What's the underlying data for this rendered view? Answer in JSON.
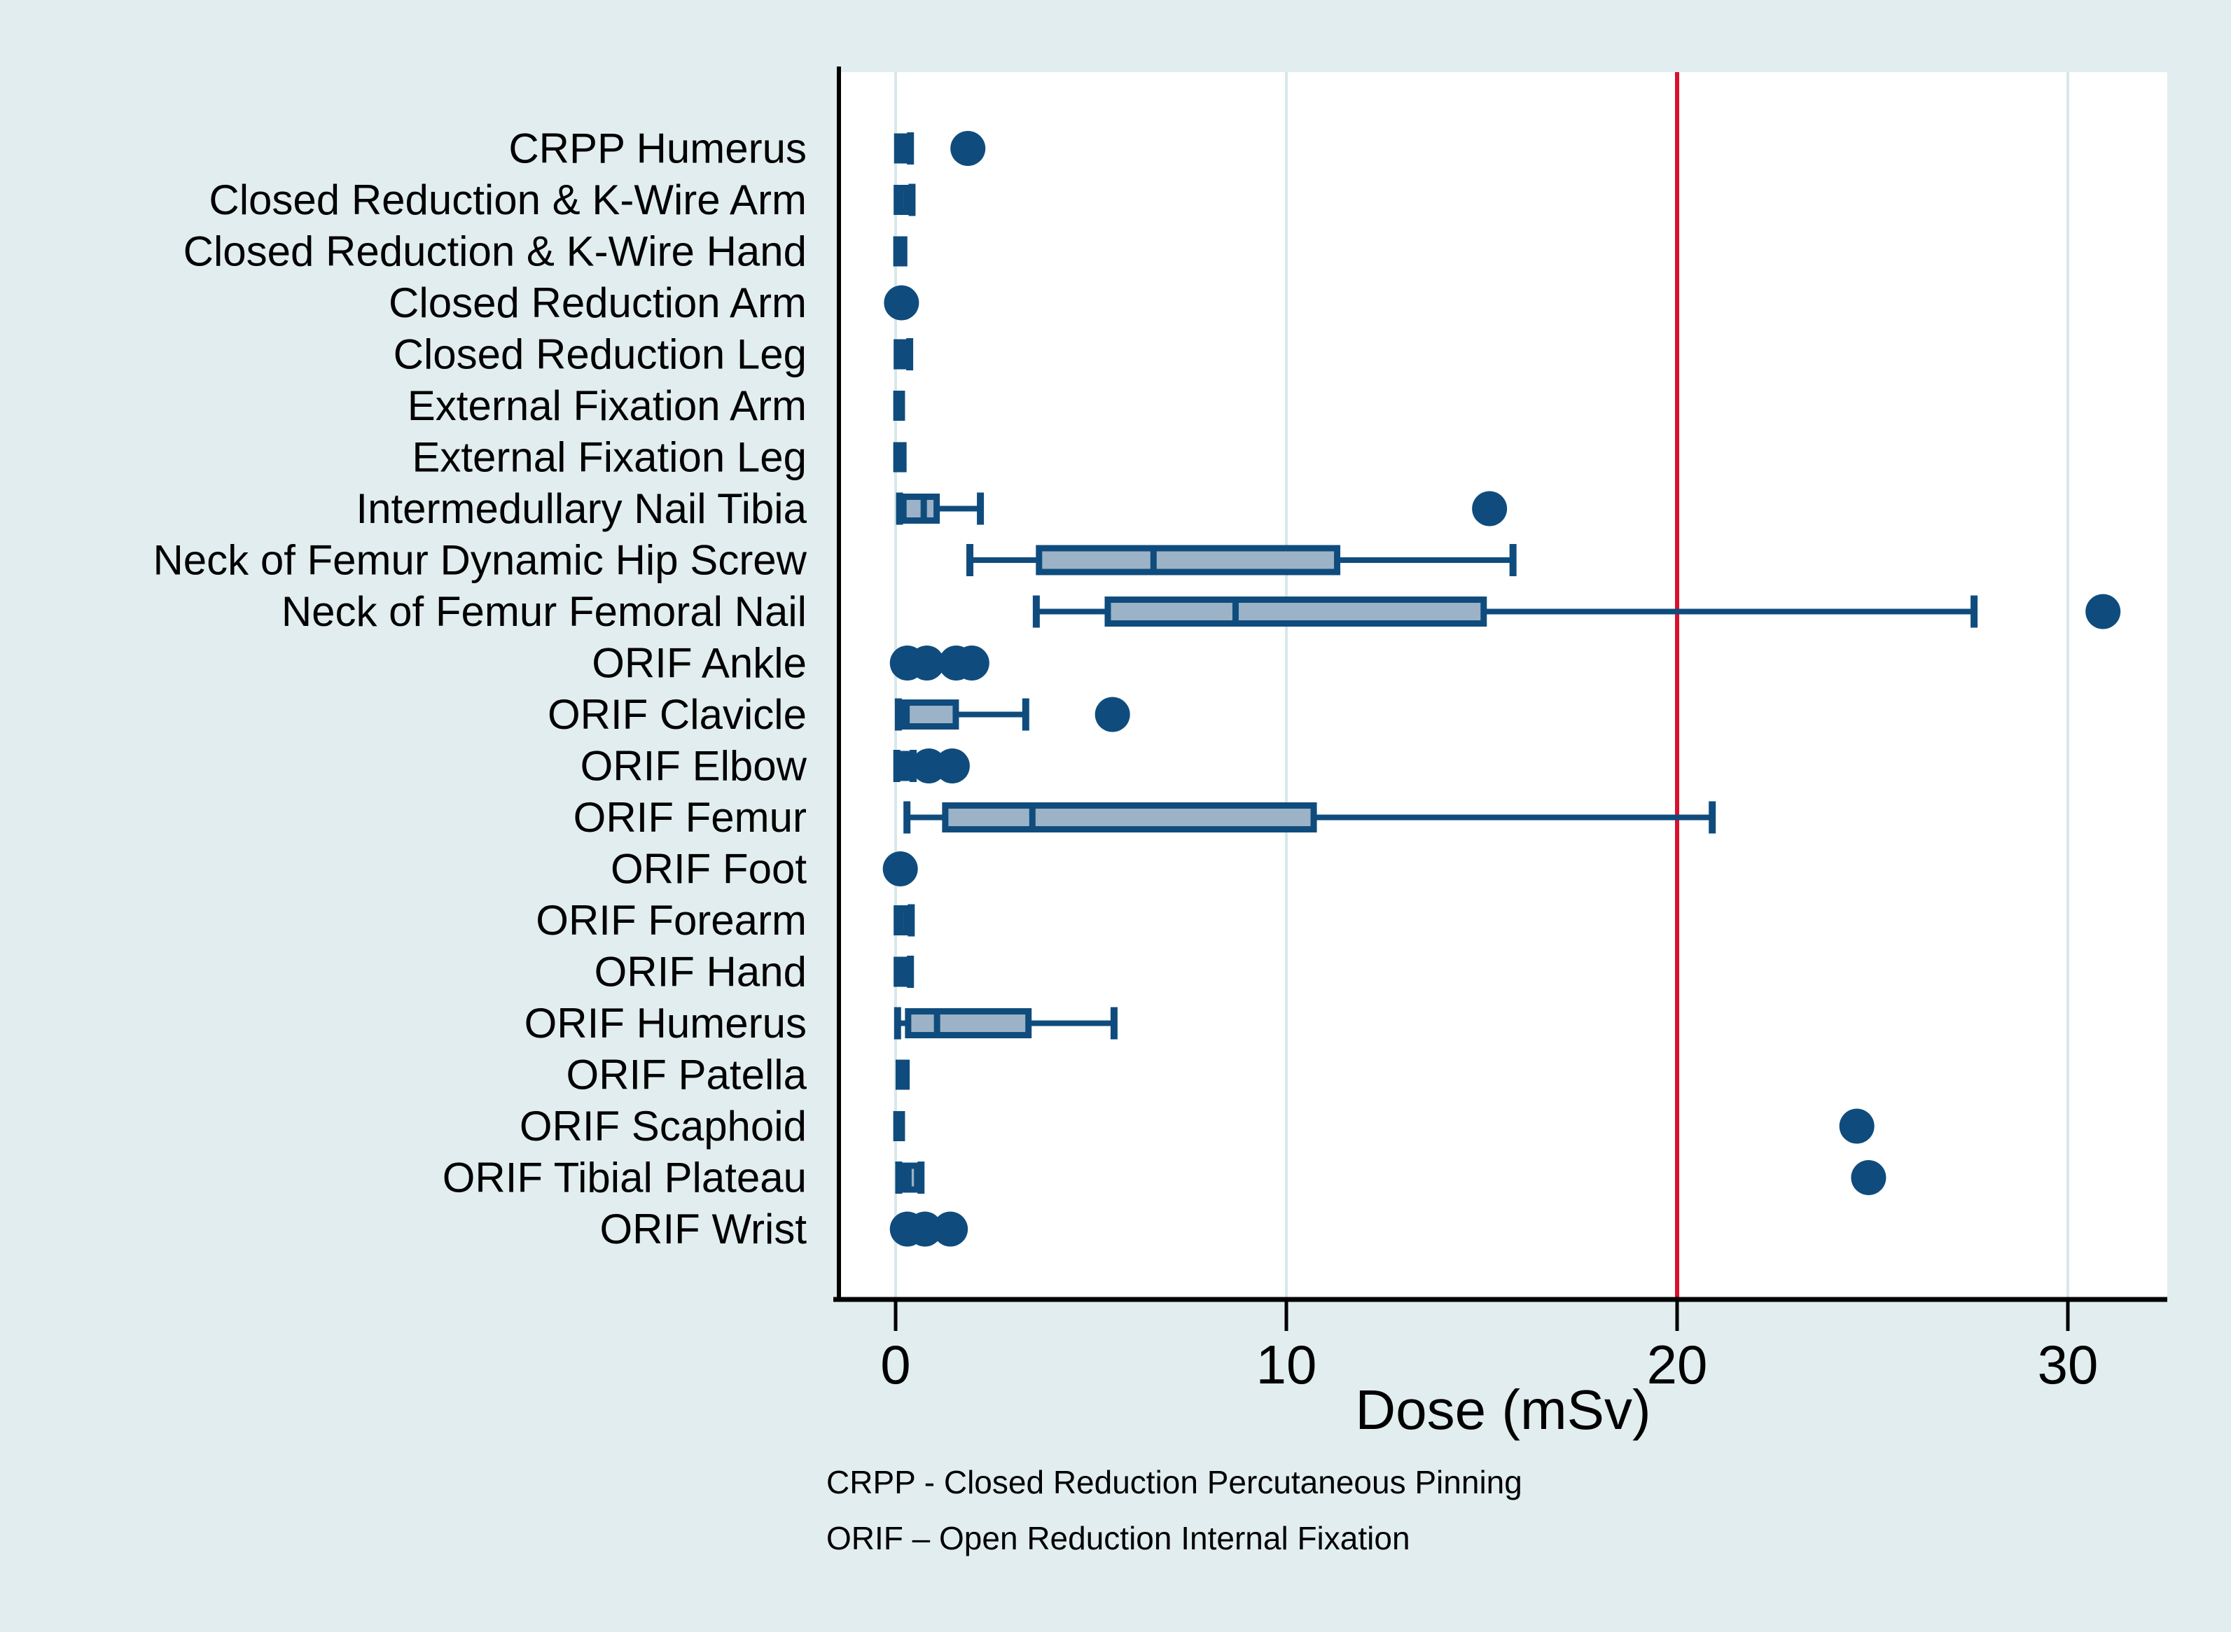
{
  "chart_data": {
    "type": "boxplot",
    "orientation": "horizontal",
    "title": "",
    "xlabel": "Dose (mSv)",
    "ylabel": "",
    "x_ticks": [
      0,
      10,
      20,
      30
    ],
    "xlim": [
      -1.5,
      32.5
    ],
    "grid": "vertical-light",
    "reference_line": {
      "value": 20,
      "color": "#d9112e"
    },
    "colors": {
      "marker": "#0f4c7d",
      "box_fill": "#9cb2c6",
      "box_border": "#0f4c7d",
      "background": "#e1edef",
      "plot_background": "#ffffff",
      "gridline": "#d8e7ea",
      "axis": "#000000"
    },
    "rows": [
      {
        "label": "CRPP Humerus",
        "box": {
          "lo": 0.04,
          "q1": 0.04,
          "med": 0.12,
          "q3": 0.25,
          "hi": 0.38
        },
        "dots": [
          1.85
        ]
      },
      {
        "label": "Closed Reduction & K-Wire Arm",
        "box": {
          "lo": 0.03,
          "q1": 0.03,
          "med": 0.12,
          "q3": 0.28,
          "hi": 0.42
        },
        "dots": []
      },
      {
        "label": "Closed Reduction & K-Wire Hand",
        "box": {
          "lo": 0.02,
          "q1": 0.02,
          "med": 0.1,
          "q3": 0.22,
          "hi": 0.22
        },
        "dots": []
      },
      {
        "label": "Closed Reduction Arm",
        "box": null,
        "dots": [
          0.15
        ]
      },
      {
        "label": "Closed Reduction Leg",
        "box": {
          "lo": 0.03,
          "q1": 0.03,
          "med": 0.1,
          "q3": 0.24,
          "hi": 0.36
        },
        "dots": []
      },
      {
        "label": "External Fixation Arm",
        "box": {
          "lo": 0.02,
          "q1": 0.02,
          "med": 0.08,
          "q3": 0.16,
          "hi": 0.16
        },
        "dots": []
      },
      {
        "label": "External Fixation Leg",
        "box": {
          "lo": 0.02,
          "q1": 0.02,
          "med": 0.1,
          "q3": 0.2,
          "hi": 0.2
        },
        "dots": []
      },
      {
        "label": "Intermedullary Nail Tibia",
        "box": {
          "lo": 0.1,
          "q1": 0.2,
          "med": 0.72,
          "q3": 1.05,
          "hi": 2.17
        },
        "dots": [
          15.2
        ]
      },
      {
        "label": "Neck of Femur Dynamic Hip Screw",
        "box": {
          "lo": 1.9,
          "q1": 3.67,
          "med": 6.6,
          "q3": 11.3,
          "hi": 15.8
        },
        "dots": []
      },
      {
        "label": "Neck of Femur Femoral Nail",
        "box": {
          "lo": 3.6,
          "q1": 5.43,
          "med": 8.7,
          "q3": 15.05,
          "hi": 27.6
        },
        "dots": [
          30.9
        ]
      },
      {
        "label": "ORIF Ankle",
        "box": null,
        "dots": [
          0.3,
          0.8,
          1.55,
          1.95
        ]
      },
      {
        "label": "ORIF Clavicle",
        "box": {
          "lo": 0.07,
          "q1": 0.2,
          "med": 0.28,
          "q3": 1.54,
          "hi": 3.33
        },
        "dots": [
          5.55
        ]
      },
      {
        "label": "ORIF Elbow",
        "box": {
          "lo": 0.03,
          "q1": 0.07,
          "med": 0.2,
          "q3": 0.35,
          "hi": 0.45
        },
        "dots": [
          0.85,
          1.45
        ]
      },
      {
        "label": "ORIF Femur",
        "box": {
          "lo": 0.29,
          "q1": 1.27,
          "med": 3.5,
          "q3": 10.7,
          "hi": 20.9
        },
        "dots": []
      },
      {
        "label": "ORIF Foot",
        "box": null,
        "dots": [
          0.12
        ]
      },
      {
        "label": "ORIF Forearm",
        "box": {
          "lo": 0.03,
          "q1": 0.03,
          "med": 0.12,
          "q3": 0.28,
          "hi": 0.4
        },
        "dots": []
      },
      {
        "label": "ORIF Hand",
        "box": {
          "lo": 0.03,
          "q1": 0.03,
          "med": 0.12,
          "q3": 0.26,
          "hi": 0.38
        },
        "dots": []
      },
      {
        "label": "ORIF Humerus",
        "box": {
          "lo": 0.05,
          "q1": 0.32,
          "med": 1.06,
          "q3": 3.4,
          "hi": 5.59
        },
        "dots": []
      },
      {
        "label": "ORIF Patella",
        "box": {
          "lo": 0.08,
          "q1": 0.08,
          "med": 0.17,
          "q3": 0.28,
          "hi": 0.28
        },
        "dots": []
      },
      {
        "label": "ORIF Scaphoid",
        "box": {
          "lo": 0.02,
          "q1": 0.02,
          "med": 0.08,
          "q3": 0.16,
          "hi": 0.16
        },
        "dots": [
          24.6
        ]
      },
      {
        "label": "ORIF Tibial Plateau",
        "box": {
          "lo": 0.08,
          "q1": 0.18,
          "med": 0.33,
          "q3": 0.55,
          "hi": 0.65
        },
        "dots": [
          24.9
        ]
      },
      {
        "label": "ORIF Wrist",
        "box": null,
        "dots": [
          0.3,
          0.75,
          1.4
        ]
      }
    ],
    "footnotes": [
      "CRPP - Closed Reduction Percutaneous Pinning",
      "ORIF – Open Reduction Internal Fixation"
    ]
  }
}
